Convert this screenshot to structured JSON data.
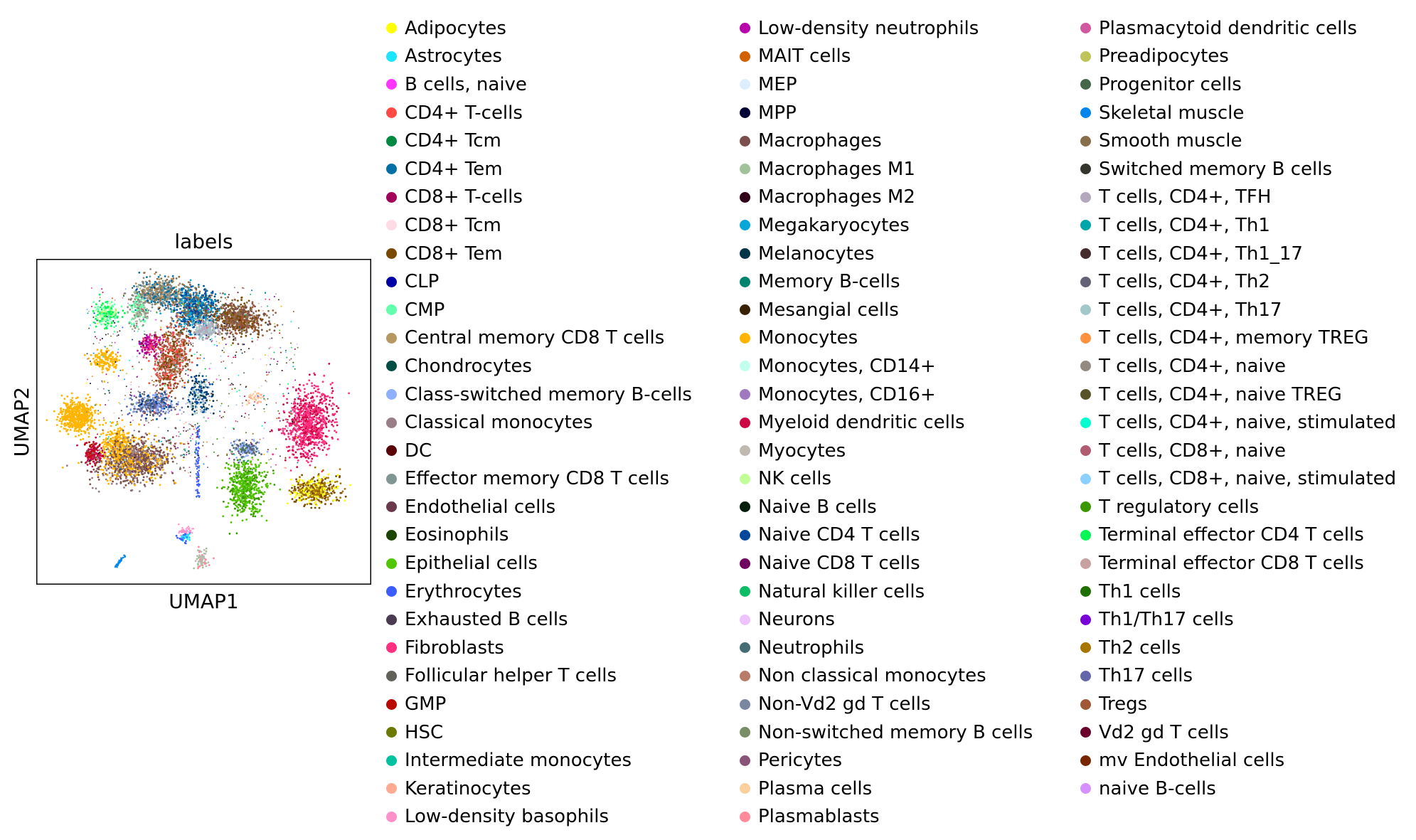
{
  "chart_data": {
    "type": "scatter",
    "title": "labels",
    "xlabel": "UMAP1",
    "ylabel": "UMAP2",
    "grid": false,
    "legend_placement": "right",
    "legend_columns": 3,
    "series": [
      {
        "name": "Adipocytes",
        "color": "#ffff00"
      },
      {
        "name": "Astrocytes",
        "color": "#1ce6ff"
      },
      {
        "name": "B cells, naive",
        "color": "#ff34ff"
      },
      {
        "name": "CD4+ T-cells",
        "color": "#ff4a46"
      },
      {
        "name": "CD4+ Tcm",
        "color": "#008941"
      },
      {
        "name": "CD4+ Tem",
        "color": "#006fa6"
      },
      {
        "name": "CD8+ T-cells",
        "color": "#a30059"
      },
      {
        "name": "CD8+ Tcm",
        "color": "#ffdbe5"
      },
      {
        "name": "CD8+ Tem",
        "color": "#7a4900"
      },
      {
        "name": "CLP",
        "color": "#0000a6"
      },
      {
        "name": "CMP",
        "color": "#63ffac"
      },
      {
        "name": "Central memory CD8 T cells",
        "color": "#b79762"
      },
      {
        "name": "Chondrocytes",
        "color": "#004d43"
      },
      {
        "name": "Class-switched memory B-cells",
        "color": "#8fb0ff"
      },
      {
        "name": "Classical monocytes",
        "color": "#997d87"
      },
      {
        "name": "DC",
        "color": "#5a0007"
      },
      {
        "name": "Effector memory CD8 T cells",
        "color": "#809693"
      },
      {
        "name": "Endothelial cells",
        "color": "#6a3a4c"
      },
      {
        "name": "Eosinophils",
        "color": "#1b4400"
      },
      {
        "name": "Epithelial cells",
        "color": "#4fc601"
      },
      {
        "name": "Erythrocytes",
        "color": "#3b5dff"
      },
      {
        "name": "Exhausted B cells",
        "color": "#4a3b53"
      },
      {
        "name": "Fibroblasts",
        "color": "#ff2f80"
      },
      {
        "name": "Follicular helper T cells",
        "color": "#61615a"
      },
      {
        "name": "GMP",
        "color": "#ba0900"
      },
      {
        "name": "HSC",
        "color": "#6b7900"
      },
      {
        "name": "Intermediate monocytes",
        "color": "#00c2a0"
      },
      {
        "name": "Keratinocytes",
        "color": "#ffaa92"
      },
      {
        "name": "Low-density basophils",
        "color": "#ff90c9"
      },
      {
        "name": "Low-density neutrophils",
        "color": "#b903aa"
      },
      {
        "name": "MAIT cells",
        "color": "#d16100"
      },
      {
        "name": "MEP",
        "color": "#ddefff"
      },
      {
        "name": "MPP",
        "color": "#000035"
      },
      {
        "name": "Macrophages",
        "color": "#7b4f4b"
      },
      {
        "name": "Macrophages M1",
        "color": "#a1c299"
      },
      {
        "name": "Macrophages M2",
        "color": "#300018"
      },
      {
        "name": "Megakaryocytes",
        "color": "#0aa6d8"
      },
      {
        "name": "Melanocytes",
        "color": "#013349"
      },
      {
        "name": "Memory B-cells",
        "color": "#00846f"
      },
      {
        "name": "Mesangial cells",
        "color": "#372101"
      },
      {
        "name": "Monocytes",
        "color": "#ffb500"
      },
      {
        "name": "Monocytes, CD14+",
        "color": "#c2ffed"
      },
      {
        "name": "Monocytes, CD16+",
        "color": "#a079bf"
      },
      {
        "name": "Myeloid dendritic cells",
        "color": "#cc0744"
      },
      {
        "name": "Myocytes",
        "color": "#c0b9b2"
      },
      {
        "name": "NK cells",
        "color": "#c2ff99"
      },
      {
        "name": "Naive B cells",
        "color": "#001e09"
      },
      {
        "name": "Naive CD4 T cells",
        "color": "#00489c"
      },
      {
        "name": "Naive CD8 T cells",
        "color": "#6f0062"
      },
      {
        "name": "Natural killer cells",
        "color": "#0cbd66"
      },
      {
        "name": "Neurons",
        "color": "#eec3ff"
      },
      {
        "name": "Neutrophils",
        "color": "#456d75"
      },
      {
        "name": "Non classical monocytes",
        "color": "#b77b68"
      },
      {
        "name": "Non-Vd2 gd T cells",
        "color": "#7a87a1"
      },
      {
        "name": "Non-switched memory B cells",
        "color": "#788d66"
      },
      {
        "name": "Pericytes",
        "color": "#885578"
      },
      {
        "name": "Plasma cells",
        "color": "#fad09f"
      },
      {
        "name": "Plasmablasts",
        "color": "#ff8a9a"
      },
      {
        "name": "Plasmacytoid dendritic cells",
        "color": "#d157a0"
      },
      {
        "name": "Preadipocytes",
        "color": "#bec459"
      },
      {
        "name": "Progenitor cells",
        "color": "#456648"
      },
      {
        "name": "Skeletal muscle",
        "color": "#0086ed"
      },
      {
        "name": "Smooth muscle",
        "color": "#886f4c"
      },
      {
        "name": "Switched memory B cells",
        "color": "#34362d"
      },
      {
        "name": "T cells, CD4+, TFH",
        "color": "#b4a8bd"
      },
      {
        "name": "T cells, CD4+, Th1",
        "color": "#00a6aa"
      },
      {
        "name": "T cells, CD4+, Th1_17",
        "color": "#452c2c"
      },
      {
        "name": "T cells, CD4+, Th2",
        "color": "#636375"
      },
      {
        "name": "T cells, CD4+, Th17",
        "color": "#a3c8c9"
      },
      {
        "name": "T cells, CD4+, memory TREG",
        "color": "#ff913f"
      },
      {
        "name": "T cells, CD4+, naive",
        "color": "#938a81"
      },
      {
        "name": "T cells, CD4+, naive TREG",
        "color": "#575329"
      },
      {
        "name": "T cells, CD4+, naive, stimulated",
        "color": "#00fecf"
      },
      {
        "name": "T cells, CD8+, naive",
        "color": "#b05b6f"
      },
      {
        "name": "T cells, CD8+, naive, stimulated",
        "color": "#8cd0ff"
      },
      {
        "name": "T regulatory cells",
        "color": "#3b9700"
      },
      {
        "name": "Terminal effector CD4 T cells",
        "color": "#04f757"
      },
      {
        "name": "Terminal effector CD8 T cells",
        "color": "#c8a1a1"
      },
      {
        "name": "Th1 cells",
        "color": "#1e6e00"
      },
      {
        "name": "Th1/Th17 cells",
        "color": "#7900d7"
      },
      {
        "name": "Th2 cells",
        "color": "#a77500"
      },
      {
        "name": "Th17 cells",
        "color": "#6367a9"
      },
      {
        "name": "Tregs",
        "color": "#a05837"
      },
      {
        "name": "Vd2 gd T cells",
        "color": "#6b002c"
      },
      {
        "name": "mv Endothelial cells",
        "color": "#772600"
      },
      {
        "name": "naive B-cells",
        "color": "#d790ff"
      }
    ]
  }
}
